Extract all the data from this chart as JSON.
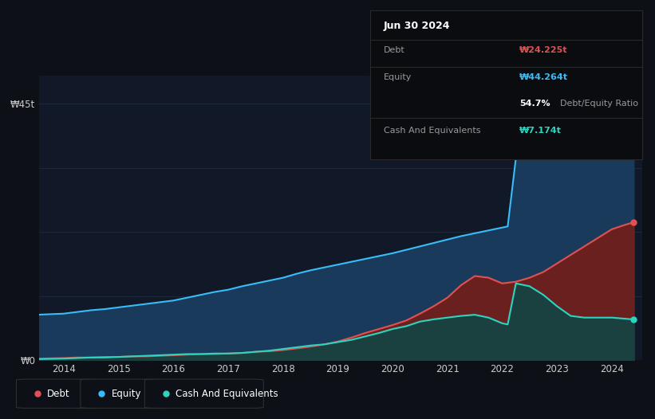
{
  "background_color": "#0d1117",
  "plot_bg_color": "#111827",
  "grid_color": "#1e2d3d",
  "title_box": {
    "date": "Jun 30 2024",
    "debt_label": "Debt",
    "debt_value": "₩24.225t",
    "equity_label": "Equity",
    "equity_value": "₩44.264t",
    "ratio_value": "54.7%",
    "ratio_label": "Debt/Equity Ratio",
    "cash_label": "Cash And Equivalents",
    "cash_value": "₩7.174t"
  },
  "ylabel_text": "₩45t",
  "ylabel0_text": "₩0",
  "xticklabels": [
    "2014",
    "2015",
    "2016",
    "2017",
    "2018",
    "2019",
    "2020",
    "2021",
    "2022",
    "2023",
    "2024"
  ],
  "ylim": [
    0,
    50
  ],
  "debt_color": "#e05252",
  "equity_color": "#38bdf8",
  "cash_color": "#2dd4bf",
  "debt_fill_color": "#6b2020",
  "equity_fill_color": "#1a3a5c",
  "cash_fill_color": "#1a4040",
  "legend_debt_label": "Debt",
  "legend_equity_label": "Equity",
  "legend_cash_label": "Cash And Equivalents",
  "equity_data": {
    "dates": [
      2013.5,
      2014.0,
      2014.25,
      2014.5,
      2014.75,
      2015.0,
      2015.25,
      2015.5,
      2015.75,
      2016.0,
      2016.25,
      2016.5,
      2016.75,
      2017.0,
      2017.25,
      2017.5,
      2017.75,
      2018.0,
      2018.25,
      2018.5,
      2018.75,
      2019.0,
      2019.25,
      2019.5,
      2019.75,
      2020.0,
      2020.25,
      2020.5,
      2020.75,
      2021.0,
      2021.25,
      2021.5,
      2021.75,
      2022.0,
      2022.1,
      2022.25,
      2022.5,
      2022.75,
      2023.0,
      2023.25,
      2023.5,
      2023.75,
      2024.0,
      2024.25,
      2024.4
    ],
    "values": [
      8.0,
      8.2,
      8.5,
      8.8,
      9.0,
      9.3,
      9.6,
      9.9,
      10.2,
      10.5,
      11.0,
      11.5,
      12.0,
      12.4,
      13.0,
      13.5,
      14.0,
      14.5,
      15.2,
      15.8,
      16.3,
      16.8,
      17.3,
      17.8,
      18.3,
      18.8,
      19.4,
      20.0,
      20.6,
      21.2,
      21.8,
      22.3,
      22.8,
      23.3,
      23.5,
      35.5,
      38.5,
      37.0,
      38.5,
      40.5,
      41.5,
      42.5,
      43.0,
      43.8,
      44.264
    ]
  },
  "debt_data": {
    "dates": [
      2013.5,
      2014.0,
      2014.25,
      2014.5,
      2014.75,
      2015.0,
      2015.25,
      2015.5,
      2015.75,
      2016.0,
      2016.25,
      2016.5,
      2016.75,
      2017.0,
      2017.25,
      2017.5,
      2017.75,
      2018.0,
      2018.25,
      2018.5,
      2018.75,
      2019.0,
      2019.25,
      2019.5,
      2019.75,
      2020.0,
      2020.25,
      2020.5,
      2020.75,
      2021.0,
      2021.25,
      2021.5,
      2021.75,
      2022.0,
      2022.25,
      2022.5,
      2022.75,
      2023.0,
      2023.25,
      2023.5,
      2023.75,
      2024.0,
      2024.25,
      2024.4
    ],
    "values": [
      0.3,
      0.4,
      0.5,
      0.5,
      0.6,
      0.6,
      0.7,
      0.7,
      0.8,
      0.9,
      1.0,
      1.1,
      1.1,
      1.2,
      1.3,
      1.5,
      1.6,
      1.8,
      2.1,
      2.4,
      2.8,
      3.3,
      4.0,
      4.8,
      5.5,
      6.2,
      7.0,
      8.2,
      9.5,
      11.0,
      13.2,
      14.8,
      14.5,
      13.5,
      13.8,
      14.5,
      15.5,
      17.0,
      18.5,
      20.0,
      21.5,
      23.0,
      23.8,
      24.225
    ]
  },
  "cash_data": {
    "dates": [
      2013.5,
      2014.0,
      2014.25,
      2014.5,
      2014.75,
      2015.0,
      2015.25,
      2015.5,
      2015.75,
      2016.0,
      2016.25,
      2016.5,
      2016.75,
      2017.0,
      2017.25,
      2017.5,
      2017.75,
      2018.0,
      2018.25,
      2018.5,
      2018.75,
      2019.0,
      2019.25,
      2019.5,
      2019.75,
      2020.0,
      2020.25,
      2020.5,
      2020.75,
      2021.0,
      2021.25,
      2021.5,
      2021.75,
      2022.0,
      2022.1,
      2022.25,
      2022.5,
      2022.75,
      2023.0,
      2023.25,
      2023.5,
      2023.75,
      2024.0,
      2024.25,
      2024.4
    ],
    "values": [
      0.2,
      0.3,
      0.4,
      0.5,
      0.5,
      0.6,
      0.7,
      0.8,
      0.9,
      1.0,
      1.1,
      1.1,
      1.2,
      1.2,
      1.3,
      1.5,
      1.7,
      2.0,
      2.3,
      2.6,
      2.8,
      3.2,
      3.6,
      4.2,
      4.8,
      5.5,
      6.0,
      6.8,
      7.2,
      7.5,
      7.8,
      8.0,
      7.5,
      6.5,
      6.3,
      13.5,
      13.0,
      11.5,
      9.5,
      7.8,
      7.5,
      7.5,
      7.5,
      7.3,
      7.174
    ]
  }
}
